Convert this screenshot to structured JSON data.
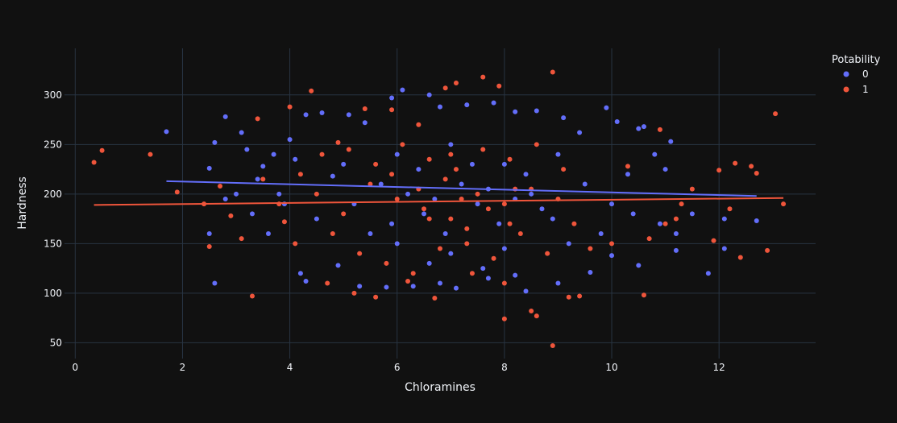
{
  "chart_data": {
    "type": "scatter",
    "title": "",
    "xlabel": "Chloramines",
    "ylabel": "Hardness",
    "xlim": [
      -0.2,
      13.8
    ],
    "ylim": [
      34,
      347
    ],
    "x_ticks": [
      0,
      2,
      4,
      6,
      8,
      10,
      12
    ],
    "y_ticks": [
      50,
      100,
      150,
      200,
      250,
      300
    ],
    "grid": true,
    "legend": {
      "title": "Potability",
      "position": "top-right",
      "entries": [
        "0",
        "1"
      ]
    },
    "colors": {
      "0": "#636efa",
      "1": "#ef553b",
      "background": "#111111",
      "grid": "#283442"
    },
    "series": [
      {
        "name": "0",
        "points": [
          [
            1.7,
            263
          ],
          [
            2.8,
            278
          ],
          [
            2.5,
            226
          ],
          [
            2.6,
            110
          ],
          [
            2.6,
            252
          ],
          [
            3.1,
            262
          ],
          [
            3.2,
            245
          ],
          [
            3.5,
            228
          ],
          [
            3.7,
            240
          ],
          [
            4.0,
            255
          ],
          [
            4.1,
            235
          ],
          [
            4.3,
            280
          ],
          [
            4.6,
            282
          ],
          [
            4.8,
            218
          ],
          [
            5.1,
            280
          ],
          [
            5.4,
            272
          ],
          [
            5.9,
            297
          ],
          [
            6.1,
            305
          ],
          [
            6.6,
            300
          ],
          [
            6.8,
            288
          ],
          [
            7.3,
            290
          ],
          [
            7.8,
            292
          ],
          [
            8.2,
            283
          ],
          [
            8.6,
            284
          ],
          [
            9.1,
            277
          ],
          [
            9.4,
            262
          ],
          [
            9.9,
            287
          ],
          [
            10.1,
            273
          ],
          [
            10.5,
            266
          ],
          [
            10.6,
            268
          ],
          [
            11.1,
            253
          ],
          [
            11.5,
            180
          ],
          [
            11.8,
            120
          ],
          [
            12.1,
            175
          ],
          [
            12.1,
            145
          ],
          [
            12.7,
            173
          ],
          [
            11.2,
            143
          ],
          [
            11.0,
            225
          ],
          [
            10.8,
            240
          ],
          [
            10.3,
            220
          ],
          [
            4.2,
            120
          ],
          [
            4.3,
            112
          ],
          [
            4.9,
            128
          ],
          [
            5.3,
            107
          ],
          [
            5.8,
            106
          ],
          [
            6.3,
            107
          ],
          [
            6.8,
            110
          ],
          [
            7.1,
            105
          ],
          [
            7.7,
            115
          ],
          [
            8.2,
            118
          ],
          [
            8.4,
            102
          ],
          [
            9.0,
            110
          ],
          [
            9.6,
            121
          ],
          [
            10.0,
            138
          ],
          [
            10.5,
            128
          ],
          [
            11.2,
            160
          ],
          [
            3.0,
            200
          ],
          [
            3.3,
            180
          ],
          [
            3.6,
            160
          ],
          [
            3.9,
            190
          ],
          [
            2.5,
            160
          ],
          [
            2.8,
            195
          ],
          [
            3.4,
            215
          ],
          [
            3.8,
            200
          ],
          [
            4.5,
            175
          ],
          [
            5.5,
            160
          ],
          [
            6.5,
            180
          ],
          [
            7.5,
            190
          ],
          [
            8.5,
            200
          ],
          [
            9.5,
            210
          ],
          [
            5.0,
            230
          ],
          [
            6.0,
            240
          ],
          [
            7.0,
            250
          ],
          [
            8.0,
            230
          ],
          [
            9.0,
            240
          ],
          [
            10.0,
            190
          ],
          [
            10.4,
            180
          ],
          [
            10.9,
            170
          ],
          [
            9.8,
            160
          ],
          [
            9.2,
            150
          ],
          [
            5.7,
            210
          ],
          [
            6.2,
            200
          ],
          [
            6.7,
            195
          ],
          [
            7.2,
            210
          ],
          [
            7.7,
            205
          ],
          [
            8.2,
            195
          ],
          [
            8.7,
            185
          ],
          [
            6.4,
            225
          ],
          [
            7.4,
            230
          ],
          [
            8.4,
            220
          ],
          [
            5.2,
            190
          ],
          [
            5.9,
            170
          ],
          [
            6.9,
            160
          ],
          [
            7.9,
            170
          ],
          [
            8.9,
            175
          ],
          [
            6.0,
            150
          ],
          [
            7.0,
            140
          ],
          [
            8.0,
            145
          ],
          [
            6.6,
            130
          ],
          [
            7.6,
            125
          ]
        ],
        "trend": [
          [
            1.7,
            213
          ],
          [
            12.7,
            198
          ]
        ]
      },
      {
        "name": "1",
        "points": [
          [
            0.35,
            232
          ],
          [
            0.5,
            244
          ],
          [
            1.4,
            240
          ],
          [
            1.9,
            202
          ],
          [
            2.4,
            190
          ],
          [
            2.5,
            147
          ],
          [
            2.7,
            208
          ],
          [
            2.9,
            178
          ],
          [
            3.1,
            155
          ],
          [
            3.3,
            97
          ],
          [
            3.4,
            276
          ],
          [
            3.9,
            172
          ],
          [
            4.0,
            288
          ],
          [
            4.4,
            304
          ],
          [
            4.9,
            252
          ],
          [
            5.4,
            286
          ],
          [
            5.9,
            285
          ],
          [
            6.4,
            270
          ],
          [
            6.9,
            307
          ],
          [
            7.1,
            312
          ],
          [
            7.6,
            318
          ],
          [
            7.9,
            309
          ],
          [
            8.9,
            323
          ],
          [
            8.0,
            74
          ],
          [
            8.0,
            110
          ],
          [
            8.5,
            82
          ],
          [
            8.6,
            77
          ],
          [
            8.9,
            47
          ],
          [
            9.2,
            96
          ],
          [
            9.4,
            97
          ],
          [
            10.3,
            228
          ],
          [
            10.6,
            98
          ],
          [
            10.7,
            155
          ],
          [
            11.0,
            170
          ],
          [
            11.3,
            190
          ],
          [
            11.5,
            205
          ],
          [
            11.9,
            153
          ],
          [
            12.0,
            224
          ],
          [
            12.2,
            185
          ],
          [
            12.3,
            231
          ],
          [
            12.4,
            136
          ],
          [
            12.6,
            228
          ],
          [
            12.7,
            221
          ],
          [
            12.9,
            143
          ],
          [
            13.05,
            281
          ],
          [
            13.2,
            190
          ],
          [
            10.9,
            265
          ],
          [
            11.2,
            175
          ],
          [
            10.0,
            150
          ],
          [
            9.6,
            145
          ],
          [
            4.5,
            200
          ],
          [
            5.0,
            180
          ],
          [
            5.5,
            210
          ],
          [
            6.0,
            195
          ],
          [
            6.5,
            185
          ],
          [
            7.0,
            175
          ],
          [
            7.5,
            200
          ],
          [
            8.0,
            190
          ],
          [
            8.5,
            205
          ],
          [
            9.0,
            195
          ],
          [
            4.8,
            160
          ],
          [
            5.3,
            140
          ],
          [
            5.8,
            130
          ],
          [
            6.3,
            120
          ],
          [
            6.8,
            145
          ],
          [
            7.3,
            150
          ],
          [
            7.8,
            135
          ],
          [
            8.3,
            160
          ],
          [
            8.8,
            140
          ],
          [
            9.3,
            170
          ],
          [
            4.6,
            240
          ],
          [
            5.1,
            245
          ],
          [
            5.6,
            230
          ],
          [
            6.1,
            250
          ],
          [
            6.6,
            235
          ],
          [
            7.1,
            225
          ],
          [
            7.6,
            245
          ],
          [
            8.1,
            235
          ],
          [
            8.6,
            250
          ],
          [
            9.1,
            225
          ],
          [
            3.5,
            215
          ],
          [
            3.8,
            190
          ],
          [
            4.2,
            220
          ],
          [
            4.1,
            150
          ],
          [
            4.7,
            110
          ],
          [
            5.2,
            100
          ],
          [
            5.6,
            96
          ],
          [
            6.2,
            112
          ],
          [
            6.7,
            95
          ],
          [
            7.4,
            120
          ],
          [
            6.4,
            205
          ],
          [
            6.9,
            215
          ],
          [
            7.2,
            195
          ],
          [
            7.7,
            185
          ],
          [
            8.2,
            205
          ],
          [
            6.6,
            175
          ],
          [
            7.3,
            165
          ],
          [
            8.1,
            170
          ],
          [
            5.9,
            220
          ],
          [
            7.0,
            240
          ]
        ],
        "trend": [
          [
            0.35,
            189
          ],
          [
            13.2,
            196
          ]
        ]
      }
    ]
  }
}
